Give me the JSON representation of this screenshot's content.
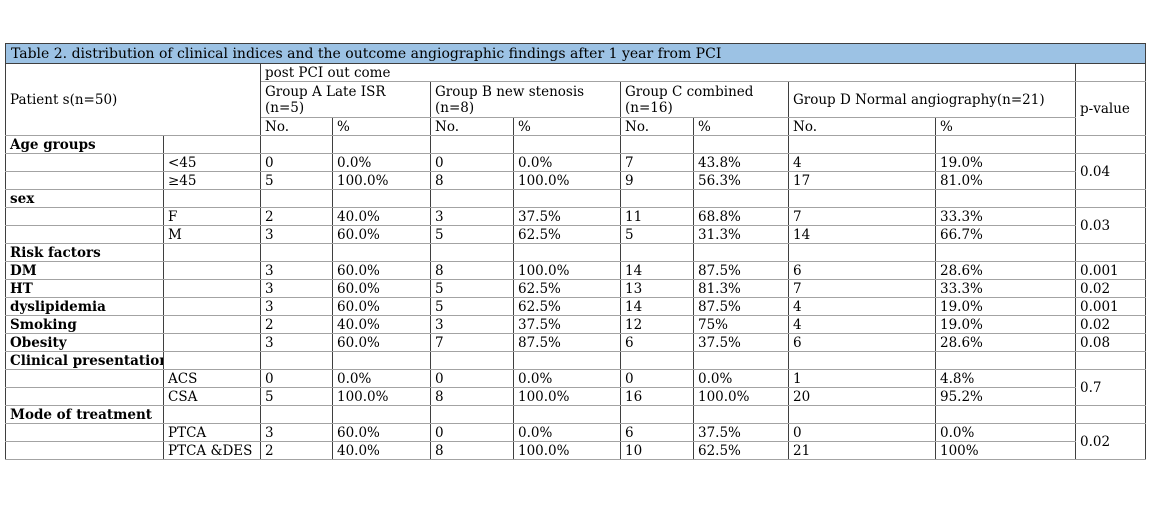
{
  "table": {
    "title": "Table 2. distribution of clinical indices and the outcome angiographic findings after 1 year from PCI",
    "colors": {
      "title_bg": "#9cc2e4",
      "border_dark": "#3f3f3f",
      "border_light": "#a3a3a3",
      "text": "#000000"
    },
    "header": {
      "patients": "Patient s(n=50)",
      "post_pci": "post PCI out come",
      "p_value": "p-value",
      "no_label": "No.",
      "pct_label": "%",
      "groups": [
        {
          "line1": "Group A Late ISR",
          "line2": "(n=5)"
        },
        {
          "line1": "Group B new stenosis",
          "line2": "(n=8)"
        },
        {
          "line1": "Group C combined",
          "line2": "(n=16)"
        },
        {
          "line1": "Group D Normal angiography(n=21)",
          "line2": ""
        }
      ]
    },
    "rows": [
      {
        "label": "Age groups",
        "sub": "",
        "values": [
          "",
          "",
          "",
          "",
          "",
          "",
          "",
          ""
        ],
        "p": "",
        "p_span": 1
      },
      {
        "label": "",
        "sub": "<45",
        "values": [
          "0",
          "0.0%",
          "0",
          "0.0%",
          "7",
          "43.8%",
          "4",
          "19.0%"
        ],
        "p": "0.04",
        "p_span": 2
      },
      {
        "label": "",
        "sub": "≥45",
        "values": [
          "5",
          "100.0%",
          "8",
          "100.0%",
          "9",
          "56.3%",
          "17",
          "81.0%"
        ],
        "p": null
      },
      {
        "label": "sex",
        "sub": "",
        "values": [
          "",
          "",
          "",
          "",
          "",
          "",
          "",
          ""
        ],
        "p": "",
        "p_span": 1
      },
      {
        "label": "",
        "sub": "F",
        "values": [
          "2",
          "40.0%",
          "3",
          "37.5%",
          "11",
          "68.8%",
          "7",
          "33.3%"
        ],
        "p": "0.03",
        "p_span": 2
      },
      {
        "label": "",
        "sub": "M",
        "values": [
          "3",
          "60.0%",
          "5",
          "62.5%",
          "5",
          "31.3%",
          "14",
          "66.7%"
        ],
        "p": null
      },
      {
        "label": "Risk factors",
        "sub": "",
        "values": [
          "",
          "",
          "",
          "",
          "",
          "",
          "",
          ""
        ],
        "p": "",
        "p_span": 1
      },
      {
        "label": "DM",
        "sub": "",
        "values": [
          "3",
          "60.0%",
          "8",
          "100.0%",
          "14",
          "87.5%",
          "6",
          "28.6%"
        ],
        "p": "0.001",
        "p_span": 1
      },
      {
        "label": "HT",
        "sub": "",
        "values": [
          "3",
          "60.0%",
          "5",
          "62.5%",
          "13",
          "81.3%",
          "7",
          "33.3%"
        ],
        "p": "0.02",
        "p_span": 1
      },
      {
        "label": "dyslipidemia",
        "sub": "",
        "values": [
          "3",
          "60.0%",
          "5",
          "62.5%",
          "14",
          "87.5%",
          "4",
          "19.0%"
        ],
        "p": "0.001",
        "p_span": 1
      },
      {
        "label": "Smoking",
        "sub": "",
        "values": [
          "2",
          "40.0%",
          "3",
          "37.5%",
          "12",
          "75%",
          "4",
          "19.0%"
        ],
        "p": "0.02",
        "p_span": 1
      },
      {
        "label": "Obesity",
        "sub": "",
        "values": [
          "3",
          "60.0%",
          "7",
          "87.5%",
          "6",
          "37.5%",
          "6",
          "28.6%"
        ],
        "p": "0.08",
        "p_span": 1
      },
      {
        "label": "Clinical presentation",
        "sub": "",
        "values": [
          "",
          "",
          "",
          "",
          "",
          "",
          "",
          ""
        ],
        "p": "",
        "p_span": 1
      },
      {
        "label": "",
        "sub": "ACS",
        "values": [
          "0",
          "0.0%",
          "0",
          "0.0%",
          "0",
          "0.0%",
          "1",
          "4.8%"
        ],
        "p": "0.7",
        "p_span": 2
      },
      {
        "label": "",
        "sub": "CSA",
        "values": [
          "5",
          "100.0%",
          "8",
          "100.0%",
          "16",
          "100.0%",
          "20",
          "95.2%"
        ],
        "p": null
      },
      {
        "label": "Mode of treatment",
        "sub": "",
        "values": [
          "",
          "",
          "",
          "",
          "",
          "",
          "",
          ""
        ],
        "p": "",
        "p_span": 1
      },
      {
        "label": "",
        "sub": "PTCA",
        "values": [
          "3",
          "60.0%",
          "0",
          "0.0%",
          "6",
          "37.5%",
          "0",
          "0.0%"
        ],
        "p": "0.02",
        "p_span": 2
      },
      {
        "label": "",
        "sub": "PTCA &DES",
        "values": [
          "2",
          "40.0%",
          "8",
          "100.0%",
          "10",
          "62.5%",
          "21",
          "100%"
        ],
        "p": null
      }
    ]
  }
}
